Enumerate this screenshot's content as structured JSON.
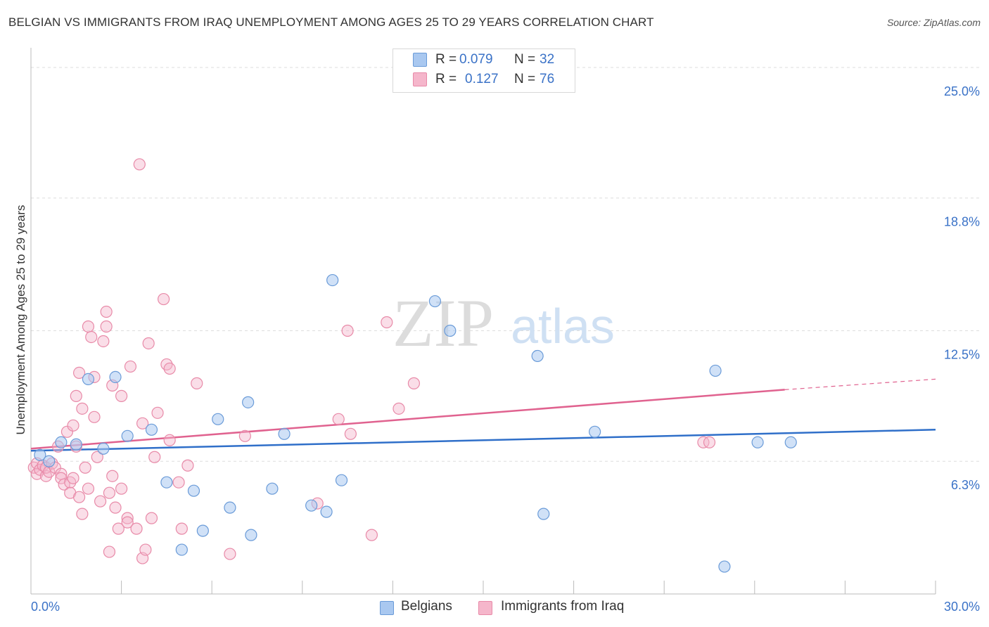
{
  "title": "BELGIAN VS IMMIGRANTS FROM IRAQ UNEMPLOYMENT AMONG AGES 25 TO 29 YEARS CORRELATION CHART",
  "source": "Source: ZipAtlas.com",
  "watermark": {
    "zip": "ZIP",
    "atlas": "atlas"
  },
  "colors": {
    "belgian_fill": "#a9c8f0",
    "belgian_stroke": "#6a9bd8",
    "belgian_line": "#2f6fc9",
    "iraq_fill": "#f5b6cb",
    "iraq_stroke": "#e88aa8",
    "iraq_line": "#e0628f",
    "axis_text": "#3a72c7",
    "grid": "#dddddd"
  },
  "legend_top": {
    "rows": [
      {
        "r_label": "R =",
        "r_value": "0.079",
        "n_label": "N =",
        "n_value": "32"
      },
      {
        "r_label": "R =",
        "r_value": "0.127",
        "n_label": "N =",
        "n_value": "76"
      }
    ]
  },
  "legend_bottom": {
    "belgians": "Belgians",
    "iraq": "Immigrants from Iraq"
  },
  "chart_data": {
    "type": "scatter",
    "title": "BELGIAN VS IMMIGRANTS FROM IRAQ UNEMPLOYMENT AMONG AGES 25 TO 29 YEARS CORRELATION CHART",
    "xlabel": "",
    "ylabel": "Unemployment Among Ages 25 to 29 years",
    "xlim": [
      0,
      30
    ],
    "ylim": [
      0,
      25.6
    ],
    "x_tick_labels": [
      "0.0%",
      "30.0%"
    ],
    "y_ticks": [
      6.3,
      12.5,
      18.8,
      25.0
    ],
    "y_tick_labels": [
      "6.3%",
      "12.5%",
      "18.8%",
      "25.0%"
    ],
    "grid": true,
    "series": [
      {
        "name": "Belgians",
        "R": 0.079,
        "N": 32,
        "trend": {
          "x": [
            0,
            30
          ],
          "y": [
            6.8,
            7.8
          ]
        },
        "points": [
          {
            "x": 0.3,
            "y": 6.6
          },
          {
            "x": 0.6,
            "y": 6.3
          },
          {
            "x": 1.0,
            "y": 7.2
          },
          {
            "x": 1.5,
            "y": 7.1
          },
          {
            "x": 1.9,
            "y": 10.2
          },
          {
            "x": 2.4,
            "y": 6.9
          },
          {
            "x": 2.8,
            "y": 10.3
          },
          {
            "x": 3.2,
            "y": 7.5
          },
          {
            "x": 4.0,
            "y": 7.8
          },
          {
            "x": 4.5,
            "y": 5.3
          },
          {
            "x": 5.0,
            "y": 2.1
          },
          {
            "x": 5.4,
            "y": 4.9
          },
          {
            "x": 5.7,
            "y": 3.0
          },
          {
            "x": 6.2,
            "y": 8.3
          },
          {
            "x": 6.6,
            "y": 4.1
          },
          {
            "x": 7.2,
            "y": 9.1
          },
          {
            "x": 7.3,
            "y": 2.8
          },
          {
            "x": 8.0,
            "y": 5.0
          },
          {
            "x": 8.4,
            "y": 7.6
          },
          {
            "x": 9.3,
            "y": 4.2
          },
          {
            "x": 9.8,
            "y": 3.9
          },
          {
            "x": 10.0,
            "y": 14.9
          },
          {
            "x": 10.3,
            "y": 5.4
          },
          {
            "x": 13.4,
            "y": 13.9
          },
          {
            "x": 13.9,
            "y": 12.5
          },
          {
            "x": 16.8,
            "y": 11.3
          },
          {
            "x": 17.0,
            "y": 3.8
          },
          {
            "x": 18.7,
            "y": 7.7
          },
          {
            "x": 22.7,
            "y": 10.6
          },
          {
            "x": 23.0,
            "y": 1.3
          },
          {
            "x": 24.1,
            "y": 7.2
          },
          {
            "x": 25.2,
            "y": 7.2
          }
        ]
      },
      {
        "name": "Immigrants from Iraq",
        "R": 0.127,
        "N": 76,
        "trend": {
          "x": [
            0,
            25
          ],
          "y": [
            6.9,
            9.7
          ],
          "dashed_to": {
            "x": 30,
            "y": 10.2
          }
        },
        "points": [
          {
            "x": 0.1,
            "y": 6.0
          },
          {
            "x": 0.2,
            "y": 6.2
          },
          {
            "x": 0.2,
            "y": 5.7
          },
          {
            "x": 0.3,
            "y": 5.9
          },
          {
            "x": 0.4,
            "y": 6.1
          },
          {
            "x": 0.5,
            "y": 5.6
          },
          {
            "x": 0.5,
            "y": 6.0
          },
          {
            "x": 0.6,
            "y": 5.8
          },
          {
            "x": 0.7,
            "y": 6.2
          },
          {
            "x": 0.8,
            "y": 6.0
          },
          {
            "x": 0.9,
            "y": 7.0
          },
          {
            "x": 1.0,
            "y": 5.7
          },
          {
            "x": 1.0,
            "y": 5.5
          },
          {
            "x": 1.1,
            "y": 5.2
          },
          {
            "x": 1.2,
            "y": 7.7
          },
          {
            "x": 1.3,
            "y": 5.3
          },
          {
            "x": 1.3,
            "y": 4.8
          },
          {
            "x": 1.4,
            "y": 8.0
          },
          {
            "x": 1.4,
            "y": 5.5
          },
          {
            "x": 1.5,
            "y": 7.0
          },
          {
            "x": 1.5,
            "y": 9.4
          },
          {
            "x": 1.6,
            "y": 10.5
          },
          {
            "x": 1.6,
            "y": 4.6
          },
          {
            "x": 1.7,
            "y": 3.8
          },
          {
            "x": 1.7,
            "y": 8.8
          },
          {
            "x": 1.8,
            "y": 6.0
          },
          {
            "x": 1.9,
            "y": 5.0
          },
          {
            "x": 1.9,
            "y": 12.7
          },
          {
            "x": 2.0,
            "y": 12.2
          },
          {
            "x": 2.1,
            "y": 10.3
          },
          {
            "x": 2.1,
            "y": 8.4
          },
          {
            "x": 2.2,
            "y": 6.5
          },
          {
            "x": 2.3,
            "y": 4.4
          },
          {
            "x": 2.4,
            "y": 12.0
          },
          {
            "x": 2.5,
            "y": 12.7
          },
          {
            "x": 2.5,
            "y": 13.4
          },
          {
            "x": 2.6,
            "y": 2.0
          },
          {
            "x": 2.6,
            "y": 4.8
          },
          {
            "x": 2.7,
            "y": 9.9
          },
          {
            "x": 2.7,
            "y": 5.6
          },
          {
            "x": 2.8,
            "y": 4.1
          },
          {
            "x": 2.9,
            "y": 3.1
          },
          {
            "x": 3.0,
            "y": 5.0
          },
          {
            "x": 3.0,
            "y": 9.4
          },
          {
            "x": 3.2,
            "y": 3.6
          },
          {
            "x": 3.2,
            "y": 3.4
          },
          {
            "x": 3.3,
            "y": 10.8
          },
          {
            "x": 3.5,
            "y": 3.1
          },
          {
            "x": 3.6,
            "y": 20.4
          },
          {
            "x": 3.7,
            "y": 8.1
          },
          {
            "x": 3.7,
            "y": 1.7
          },
          {
            "x": 3.8,
            "y": 2.1
          },
          {
            "x": 3.9,
            "y": 11.9
          },
          {
            "x": 4.0,
            "y": 3.6
          },
          {
            "x": 4.1,
            "y": 6.5
          },
          {
            "x": 4.2,
            "y": 8.6
          },
          {
            "x": 4.4,
            "y": 14.0
          },
          {
            "x": 4.5,
            "y": 10.9
          },
          {
            "x": 4.6,
            "y": 10.7
          },
          {
            "x": 4.6,
            "y": 7.3
          },
          {
            "x": 4.9,
            "y": 5.3
          },
          {
            "x": 5.0,
            "y": 3.1
          },
          {
            "x": 5.2,
            "y": 6.1
          },
          {
            "x": 5.5,
            "y": 10.0
          },
          {
            "x": 6.6,
            "y": 1.9
          },
          {
            "x": 7.1,
            "y": 7.5
          },
          {
            "x": 9.5,
            "y": 4.3
          },
          {
            "x": 10.2,
            "y": 8.3
          },
          {
            "x": 10.5,
            "y": 12.5
          },
          {
            "x": 10.6,
            "y": 7.6
          },
          {
            "x": 11.3,
            "y": 2.8
          },
          {
            "x": 11.8,
            "y": 12.9
          },
          {
            "x": 12.2,
            "y": 8.8
          },
          {
            "x": 12.7,
            "y": 10.0
          },
          {
            "x": 22.3,
            "y": 7.2
          },
          {
            "x": 22.5,
            "y": 7.2
          }
        ]
      }
    ]
  }
}
